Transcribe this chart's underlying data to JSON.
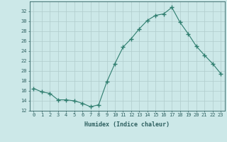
{
  "x": [
    0,
    1,
    2,
    3,
    4,
    5,
    6,
    7,
    8,
    9,
    10,
    11,
    12,
    13,
    14,
    15,
    16,
    17,
    18,
    19,
    20,
    21,
    22,
    23
  ],
  "y": [
    16.5,
    15.8,
    15.5,
    14.2,
    14.2,
    14.0,
    13.5,
    12.8,
    13.2,
    17.8,
    21.5,
    24.8,
    26.5,
    28.5,
    30.2,
    31.2,
    31.5,
    32.8,
    29.8,
    27.5,
    25.0,
    23.2,
    21.5,
    19.5
  ],
  "xlabel": "Humidex (Indice chaleur)",
  "ylabel": "",
  "line_color": "#2e7d6e",
  "marker": "+",
  "marker_color": "#2e7d6e",
  "bg_color": "#cce8e8",
  "grid_color": "#b0cccc",
  "text_color": "#2e6060",
  "ylim": [
    12,
    34
  ],
  "xlim": [
    -0.5,
    23.5
  ],
  "yticks": [
    12,
    14,
    16,
    18,
    20,
    22,
    24,
    26,
    28,
    30,
    32
  ],
  "xticks": [
    0,
    1,
    2,
    3,
    4,
    5,
    6,
    7,
    8,
    9,
    10,
    11,
    12,
    13,
    14,
    15,
    16,
    17,
    18,
    19,
    20,
    21,
    22,
    23
  ]
}
